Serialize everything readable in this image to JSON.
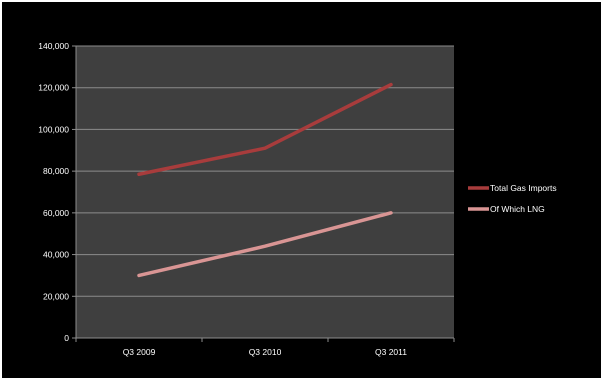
{
  "chart_data": {
    "type": "line",
    "title": "",
    "xlabel": "",
    "ylabel": "",
    "categories": [
      "Q3 2009",
      "Q3 2010",
      "Q3 2011"
    ],
    "ylim": [
      0,
      140000
    ],
    "yticks": [
      0,
      20000,
      40000,
      60000,
      80000,
      100000,
      120000,
      140000
    ],
    "ytick_labels": [
      "0",
      "20,000",
      "40,000",
      "60,000",
      "80,000",
      "100,000",
      "120,000",
      "140,000"
    ],
    "grid": true,
    "legend_position": "right",
    "plot_background": "#3f3f3f",
    "series": [
      {
        "name": "Total Gas Imports",
        "color": "#a83c3c",
        "values": [
          78500,
          91000,
          121500
        ]
      },
      {
        "name": "Of Which LNG",
        "color": "#d99594",
        "values": [
          30000,
          44000,
          60000
        ]
      }
    ]
  }
}
